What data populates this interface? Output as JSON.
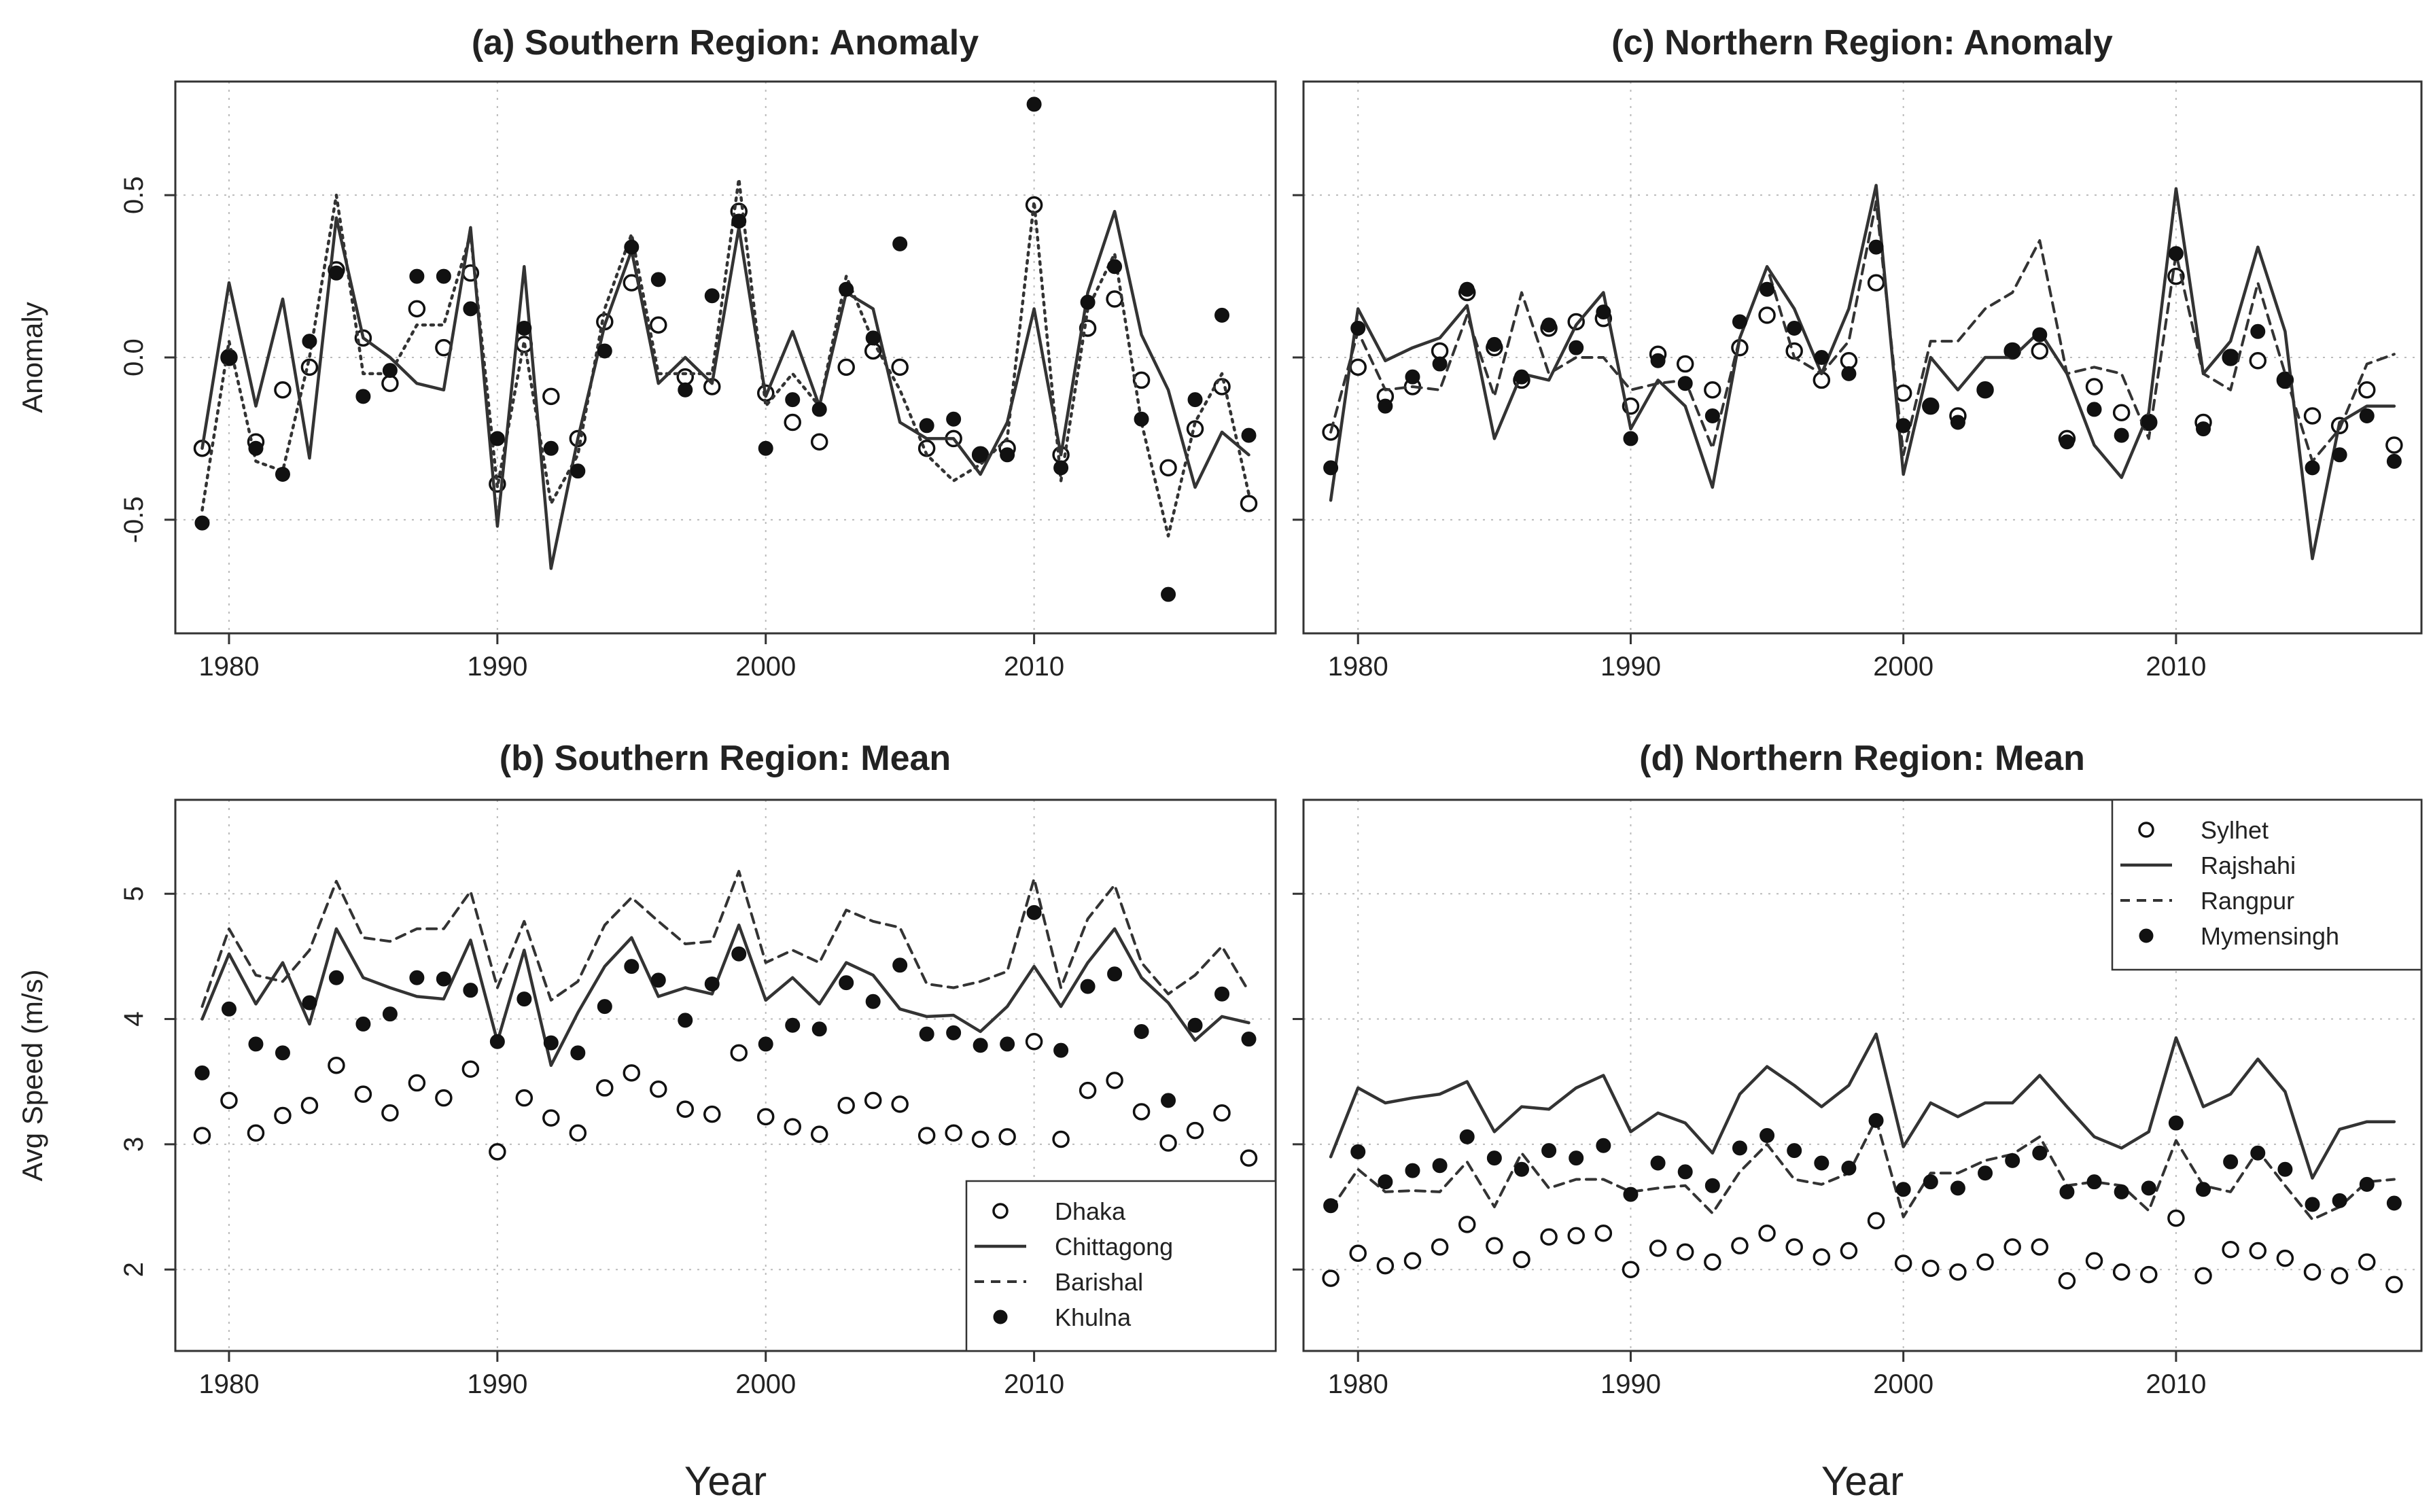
{
  "chart_data": [
    {
      "id": "a",
      "type": "line",
      "title": "(a) Southern Region: Anomaly",
      "xlabel": "",
      "ylabel": "Anomaly",
      "xlim": [
        1978,
        2019
      ],
      "ylim": [
        -0.85,
        0.85
      ],
      "xticks": [
        1980,
        1990,
        2000,
        2010
      ],
      "yticks": [
        -0.5,
        0.0,
        0.5
      ],
      "ytick_labels": [
        "-0.5",
        "0.0",
        "0.5"
      ],
      "grid": true,
      "x": [
        1979,
        1980,
        1981,
        1982,
        1983,
        1984,
        1985,
        1986,
        1987,
        1988,
        1989,
        1990,
        1991,
        1992,
        1993,
        1994,
        1995,
        1996,
        1997,
        1998,
        1999,
        2000,
        2001,
        2002,
        2003,
        2004,
        2005,
        2006,
        2007,
        2008,
        2009,
        2010,
        2011,
        2012,
        2013,
        2014,
        2015,
        2016,
        2017,
        2018
      ],
      "series": [
        {
          "name": "Dhaka",
          "style": "open",
          "values": [
            -0.28,
            0.0,
            -0.26,
            -0.1,
            -0.03,
            0.27,
            0.06,
            -0.08,
            0.15,
            0.03,
            0.26,
            -0.39,
            0.04,
            -0.12,
            -0.25,
            0.11,
            0.23,
            0.1,
            -0.06,
            -0.09,
            0.45,
            -0.11,
            -0.2,
            -0.26,
            -0.03,
            0.02,
            -0.03,
            -0.28,
            -0.25,
            -0.3,
            -0.28,
            0.47,
            -0.3,
            0.09,
            0.18,
            -0.07,
            -0.34,
            -0.22,
            -0.09,
            -0.45
          ]
        },
        {
          "name": "Chittagong",
          "style": "solid",
          "values": [
            -0.28,
            0.23,
            -0.15,
            0.18,
            -0.31,
            0.43,
            0.06,
            0.0,
            -0.08,
            -0.1,
            0.4,
            -0.52,
            0.28,
            -0.65,
            -0.25,
            0.1,
            0.33,
            -0.08,
            0.0,
            -0.08,
            0.4,
            -0.12,
            0.08,
            -0.15,
            0.2,
            0.15,
            -0.2,
            -0.25,
            -0.25,
            -0.36,
            -0.2,
            0.15,
            -0.3,
            0.2,
            0.45,
            0.07,
            -0.1,
            -0.4,
            -0.23,
            -0.3
          ]
        },
        {
          "name": "Barishal",
          "style": "dotted",
          "values": [
            -0.47,
            0.05,
            -0.32,
            -0.35,
            0.0,
            0.5,
            -0.05,
            -0.05,
            0.1,
            0.1,
            0.38,
            -0.4,
            0.05,
            -0.45,
            -0.3,
            0.15,
            0.38,
            -0.05,
            -0.05,
            -0.05,
            0.55,
            -0.15,
            -0.05,
            -0.15,
            0.25,
            0.05,
            -0.1,
            -0.3,
            -0.38,
            -0.33,
            -0.25,
            0.48,
            -0.38,
            0.15,
            0.32,
            -0.2,
            -0.55,
            -0.2,
            -0.05,
            -0.42
          ]
        },
        {
          "name": "Khulna",
          "style": "filled",
          "values": [
            -0.51,
            0.0,
            -0.28,
            -0.36,
            0.05,
            0.26,
            -0.12,
            -0.04,
            0.25,
            0.25,
            0.15,
            -0.25,
            0.09,
            -0.28,
            -0.35,
            0.02,
            0.34,
            0.24,
            -0.1,
            0.19,
            0.42,
            -0.28,
            -0.13,
            -0.16,
            0.21,
            0.06,
            0.35,
            -0.21,
            -0.19,
            -0.3,
            -0.3,
            0.78,
            -0.34,
            0.17,
            0.28,
            -0.19,
            -0.73,
            -0.13,
            0.13,
            -0.24
          ]
        }
      ]
    },
    {
      "id": "b",
      "type": "line",
      "title": "(b) Southern Region: Mean",
      "xlabel": "Year",
      "ylabel": "Avg Speed (m/s)",
      "xlim": [
        1978,
        2019
      ],
      "ylim": [
        1.35,
        5.75
      ],
      "xticks": [
        1980,
        1990,
        2000,
        2010
      ],
      "yticks": [
        2,
        3,
        4,
        5
      ],
      "ytick_labels": [
        "2",
        "3",
        "4",
        "5"
      ],
      "grid": true,
      "legend": "bottom-right",
      "x": [
        1979,
        1980,
        1981,
        1982,
        1983,
        1984,
        1985,
        1986,
        1987,
        1988,
        1989,
        1990,
        1991,
        1992,
        1993,
        1994,
        1995,
        1996,
        1997,
        1998,
        1999,
        2000,
        2001,
        2002,
        2003,
        2004,
        2005,
        2006,
        2007,
        2008,
        2009,
        2010,
        2011,
        2012,
        2013,
        2014,
        2015,
        2016,
        2017,
        2018
      ],
      "series": [
        {
          "name": "Dhaka",
          "style": "open",
          "values": [
            3.07,
            3.35,
            3.09,
            3.23,
            3.31,
            3.63,
            3.4,
            3.25,
            3.49,
            3.37,
            3.6,
            2.94,
            3.37,
            3.21,
            3.09,
            3.45,
            3.57,
            3.44,
            3.28,
            3.24,
            3.73,
            3.22,
            3.14,
            3.08,
            3.31,
            3.35,
            3.32,
            3.07,
            3.09,
            3.04,
            3.06,
            3.82,
            3.04,
            3.43,
            3.51,
            3.26,
            3.01,
            3.11,
            3.25,
            2.89
          ]
        },
        {
          "name": "Chittagong",
          "style": "solid",
          "values": [
            4.0,
            4.52,
            4.12,
            4.45,
            3.96,
            4.72,
            4.33,
            4.25,
            4.18,
            4.16,
            4.63,
            3.82,
            4.55,
            3.63,
            4.05,
            4.42,
            4.65,
            4.18,
            4.25,
            4.2,
            4.75,
            4.15,
            4.33,
            4.12,
            4.45,
            4.35,
            4.08,
            4.02,
            4.03,
            3.9,
            4.1,
            4.42,
            4.1,
            4.45,
            4.72,
            4.33,
            4.13,
            3.83,
            4.02,
            3.97
          ]
        },
        {
          "name": "Barishal",
          "style": "dashed",
          "values": [
            4.1,
            4.72,
            4.35,
            4.3,
            4.55,
            5.1,
            4.65,
            4.62,
            4.72,
            4.72,
            5.02,
            4.25,
            4.78,
            4.15,
            4.3,
            4.75,
            4.97,
            4.78,
            4.6,
            4.62,
            5.18,
            4.45,
            4.55,
            4.45,
            4.87,
            4.78,
            4.73,
            4.28,
            4.25,
            4.3,
            4.38,
            5.12,
            4.25,
            4.8,
            5.07,
            4.45,
            4.2,
            4.35,
            4.58,
            4.22
          ]
        },
        {
          "name": "Khulna",
          "style": "filled",
          "values": [
            3.57,
            4.08,
            3.8,
            3.73,
            4.13,
            4.33,
            3.96,
            4.04,
            4.33,
            4.32,
            4.23,
            3.82,
            4.16,
            3.81,
            3.73,
            4.1,
            4.42,
            4.31,
            3.99,
            4.28,
            4.52,
            3.8,
            3.95,
            3.92,
            4.29,
            4.14,
            4.43,
            3.88,
            3.89,
            3.79,
            3.8,
            4.85,
            3.75,
            4.26,
            4.36,
            3.9,
            3.35,
            3.95,
            4.2,
            3.84
          ]
        }
      ]
    },
    {
      "id": "c",
      "type": "line",
      "title": "(c) Northern Region: Anomaly",
      "xlabel": "",
      "ylabel": "",
      "xlim": [
        1978,
        2019
      ],
      "ylim": [
        -0.85,
        0.85
      ],
      "xticks": [
        1980,
        1990,
        2000,
        2010
      ],
      "yticks": [
        -0.5,
        0.0,
        0.5
      ],
      "grid": true,
      "x": [
        1979,
        1980,
        1981,
        1982,
        1983,
        1984,
        1985,
        1986,
        1987,
        1988,
        1989,
        1990,
        1991,
        1992,
        1993,
        1994,
        1995,
        1996,
        1997,
        1998,
        1999,
        2000,
        2001,
        2002,
        2003,
        2004,
        2005,
        2006,
        2007,
        2008,
        2009,
        2010,
        2011,
        2012,
        2013,
        2014,
        2015,
        2016,
        2017,
        2018
      ],
      "series": [
        {
          "name": "Sylhet",
          "style": "open",
          "values": [
            -0.23,
            -0.03,
            -0.12,
            -0.09,
            0.02,
            0.2,
            0.03,
            -0.07,
            0.09,
            0.11,
            0.12,
            -0.15,
            0.01,
            -0.02,
            -0.1,
            0.03,
            0.13,
            0.02,
            -0.07,
            -0.01,
            0.23,
            -0.11,
            -0.15,
            -0.18,
            -0.1,
            0.02,
            0.02,
            -0.25,
            -0.09,
            -0.17,
            -0.2,
            0.25,
            -0.2,
            0.0,
            -0.01,
            -0.07,
            -0.18,
            -0.21,
            -0.1,
            -0.27
          ]
        },
        {
          "name": "Rajshahi",
          "style": "solid",
          "values": [
            -0.44,
            0.15,
            -0.01,
            0.03,
            0.06,
            0.16,
            -0.25,
            -0.05,
            -0.07,
            0.1,
            0.2,
            -0.22,
            -0.07,
            -0.15,
            -0.4,
            0.06,
            0.28,
            0.15,
            -0.05,
            0.15,
            0.53,
            -0.36,
            0.0,
            -0.1,
            0.0,
            0.0,
            0.08,
            -0.05,
            -0.27,
            -0.37,
            -0.17,
            0.52,
            -0.05,
            0.05,
            0.34,
            0.08,
            -0.62,
            -0.2,
            -0.15,
            -0.15
          ]
        },
        {
          "name": "Rangpur",
          "style": "dashed",
          "values": [
            -0.23,
            0.08,
            -0.1,
            -0.09,
            -0.1,
            0.13,
            -0.12,
            0.2,
            -0.05,
            0.0,
            0.0,
            -0.1,
            -0.08,
            -0.07,
            -0.28,
            0.06,
            0.28,
            0.0,
            -0.05,
            0.05,
            0.48,
            -0.3,
            0.05,
            0.05,
            0.15,
            0.2,
            0.36,
            -0.05,
            -0.03,
            -0.05,
            -0.25,
            0.32,
            -0.05,
            -0.1,
            0.23,
            -0.05,
            -0.32,
            -0.22,
            -0.02,
            0.01
          ]
        },
        {
          "name": "Mymensingh",
          "style": "filled",
          "values": [
            -0.34,
            0.09,
            -0.15,
            -0.06,
            -0.02,
            0.21,
            0.04,
            -0.06,
            0.1,
            0.03,
            0.14,
            -0.25,
            -0.01,
            -0.08,
            -0.18,
            0.11,
            0.21,
            0.09,
            0.0,
            -0.05,
            0.34,
            -0.21,
            -0.15,
            -0.2,
            -0.1,
            0.02,
            0.07,
            -0.26,
            -0.16,
            -0.24,
            -0.2,
            0.32,
            -0.22,
            0.0,
            0.08,
            -0.07,
            -0.34,
            -0.3,
            -0.18,
            -0.32
          ]
        }
      ]
    },
    {
      "id": "d",
      "type": "line",
      "title": "(d) Northern Region: Mean",
      "xlabel": "Year",
      "ylabel": "",
      "xlim": [
        1978,
        2019
      ],
      "ylim": [
        1.35,
        5.75
      ],
      "xticks": [
        1980,
        1990,
        2000,
        2010
      ],
      "yticks": [
        2,
        3,
        4,
        5
      ],
      "grid": true,
      "legend": "top-right",
      "x": [
        1979,
        1980,
        1981,
        1982,
        1983,
        1984,
        1985,
        1986,
        1987,
        1988,
        1989,
        1990,
        1991,
        1992,
        1993,
        1994,
        1995,
        1996,
        1997,
        1998,
        1999,
        2000,
        2001,
        2002,
        2003,
        2004,
        2005,
        2006,
        2007,
        2008,
        2009,
        2010,
        2011,
        2012,
        2013,
        2014,
        2015,
        2016,
        2017,
        2018
      ],
      "series": [
        {
          "name": "Sylhet",
          "style": "open",
          "values": [
            1.93,
            2.13,
            2.03,
            2.07,
            2.18,
            2.36,
            2.19,
            2.08,
            2.26,
            2.27,
            2.29,
            2.0,
            2.17,
            2.14,
            2.06,
            2.19,
            2.29,
            2.18,
            2.1,
            2.15,
            2.39,
            2.05,
            2.01,
            1.98,
            2.06,
            2.18,
            2.18,
            1.91,
            2.07,
            1.98,
            1.96,
            2.41,
            1.95,
            2.16,
            2.15,
            2.09,
            1.98,
            1.95,
            2.06,
            1.88
          ]
        },
        {
          "name": "Rajshahi",
          "style": "solid",
          "values": [
            2.9,
            3.45,
            3.33,
            3.37,
            3.4,
            3.5,
            3.1,
            3.3,
            3.28,
            3.45,
            3.55,
            3.1,
            3.25,
            3.17,
            2.93,
            3.4,
            3.62,
            3.47,
            3.3,
            3.47,
            3.88,
            2.98,
            3.33,
            3.22,
            3.33,
            3.33,
            3.55,
            3.3,
            3.06,
            2.97,
            3.1,
            3.85,
            3.3,
            3.4,
            3.68,
            3.42,
            2.73,
            3.12,
            3.18,
            3.18
          ]
        },
        {
          "name": "Rangpur",
          "style": "dashed",
          "values": [
            2.48,
            2.8,
            2.62,
            2.63,
            2.62,
            2.86,
            2.5,
            2.93,
            2.65,
            2.72,
            2.72,
            2.62,
            2.65,
            2.67,
            2.45,
            2.78,
            3.0,
            2.72,
            2.68,
            2.77,
            3.2,
            2.42,
            2.77,
            2.77,
            2.87,
            2.92,
            3.06,
            2.67,
            2.7,
            2.67,
            2.47,
            3.03,
            2.67,
            2.62,
            2.95,
            2.67,
            2.4,
            2.5,
            2.7,
            2.72
          ]
        },
        {
          "name": "Mymensingh",
          "style": "filled",
          "values": [
            2.51,
            2.94,
            2.7,
            2.79,
            2.83,
            3.06,
            2.89,
            2.8,
            2.95,
            2.89,
            2.99,
            2.6,
            2.85,
            2.78,
            2.67,
            2.97,
            3.07,
            2.95,
            2.85,
            2.81,
            3.19,
            2.64,
            2.7,
            2.65,
            2.77,
            2.87,
            2.93,
            2.62,
            2.7,
            2.62,
            2.65,
            3.17,
            2.64,
            2.86,
            2.93,
            2.8,
            2.52,
            2.55,
            2.68,
            2.53
          ]
        }
      ]
    }
  ]
}
